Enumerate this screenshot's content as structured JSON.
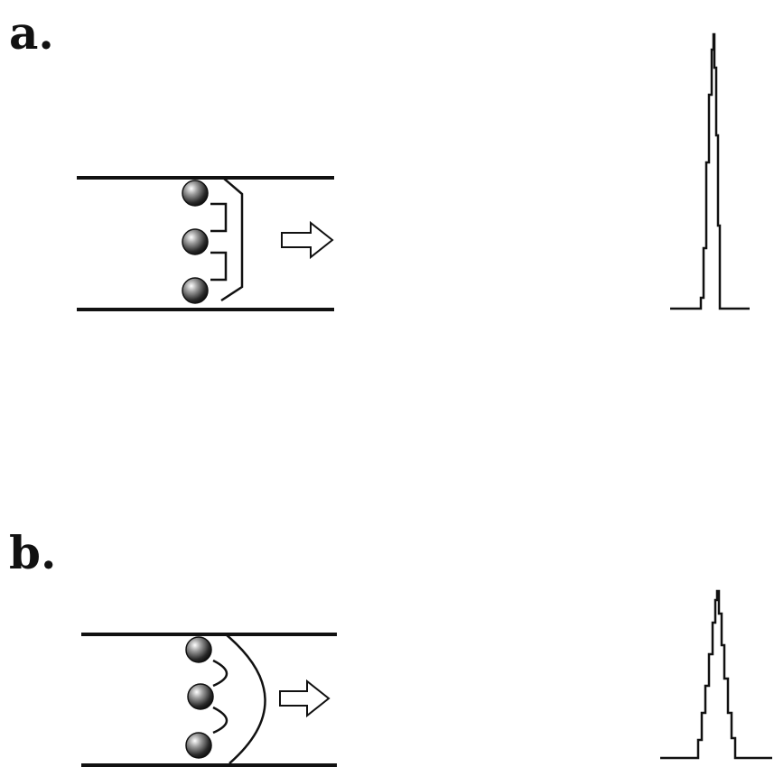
{
  "panels": [
    {
      "label": "a.",
      "flow_profile": "plug",
      "peak": "narrow"
    },
    {
      "label": "b.",
      "flow_profile": "parabolic",
      "peak": "broad"
    }
  ],
  "colors": {
    "ink": "#111111",
    "background": "#ffffff"
  }
}
